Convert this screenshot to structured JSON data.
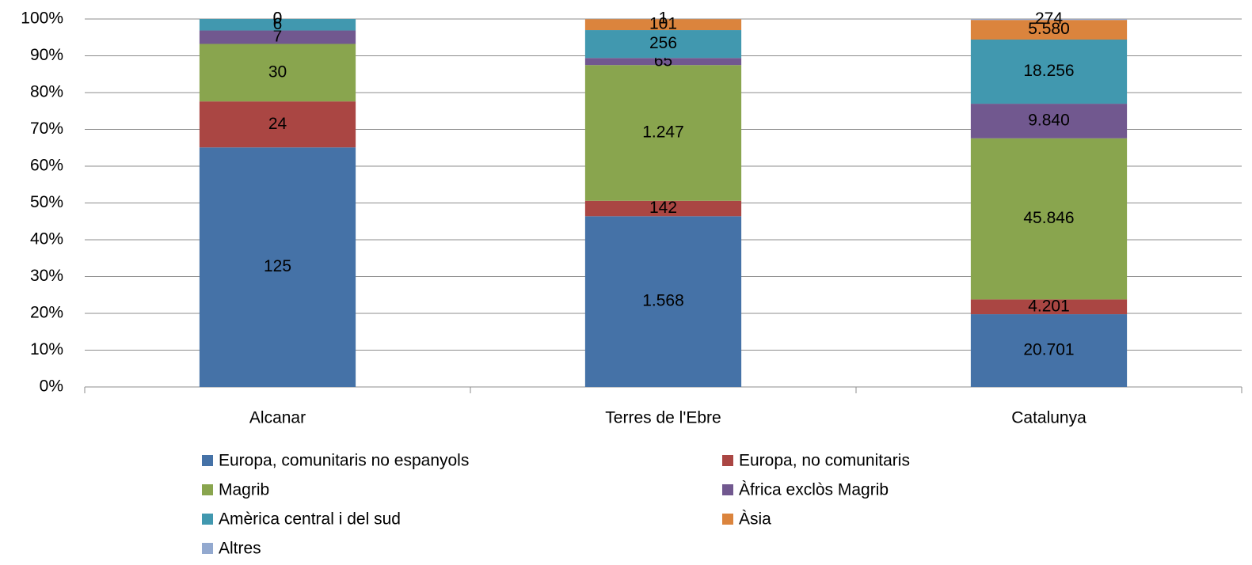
{
  "chart_data": {
    "type": "bar",
    "stacking": "percent",
    "categories": [
      "Alcanar",
      "Terres de l'Ebre",
      "Catalunya"
    ],
    "series": [
      {
        "name": "Europa, comunitaris no espanyols",
        "color": "#4572a7",
        "values": [
          125,
          1568,
          20701
        ],
        "value_labels": [
          "125",
          "1.568",
          "20.701"
        ]
      },
      {
        "name": "Europa, no comunitaris",
        "color": "#aa4643",
        "values": [
          24,
          142,
          4201
        ],
        "value_labels": [
          "24",
          "142",
          "4.201"
        ]
      },
      {
        "name": "Magrib",
        "color": "#89a54e",
        "values": [
          30,
          1247,
          45846
        ],
        "value_labels": [
          "30",
          "1.247",
          "45.846"
        ]
      },
      {
        "name": "Àfrica exclòs Magrib",
        "color": "#71588f",
        "values": [
          7,
          65,
          9840
        ],
        "value_labels": [
          "7",
          "65",
          "9.840"
        ]
      },
      {
        "name": "Amèrica central i del sud",
        "color": "#4198af",
        "values": [
          6,
          256,
          18256
        ],
        "value_labels": [
          "6",
          "256",
          "18.256"
        ]
      },
      {
        "name": "Àsia",
        "color": "#db843d",
        "values": [
          0,
          101,
          5580
        ],
        "value_labels": [
          "0",
          "101",
          "5.580"
        ]
      },
      {
        "name": "Altres",
        "color": "#93a9cf",
        "values": [
          0,
          1,
          274
        ],
        "value_labels": [
          "0",
          "1",
          "274"
        ]
      }
    ],
    "ylim": [
      0,
      100
    ],
    "yticks": [
      {
        "value": 0,
        "label": "0%"
      },
      {
        "value": 10,
        "label": "10%"
      },
      {
        "value": 20,
        "label": "20%"
      },
      {
        "value": 30,
        "label": "30%"
      },
      {
        "value": 40,
        "label": "40%"
      },
      {
        "value": 50,
        "label": "50%"
      },
      {
        "value": 60,
        "label": "60%"
      },
      {
        "value": 70,
        "label": "70%"
      },
      {
        "value": 80,
        "label": "80%"
      },
      {
        "value": 90,
        "label": "90%"
      },
      {
        "value": 100,
        "label": "100%"
      }
    ],
    "grid": true,
    "legend": "bottom"
  }
}
